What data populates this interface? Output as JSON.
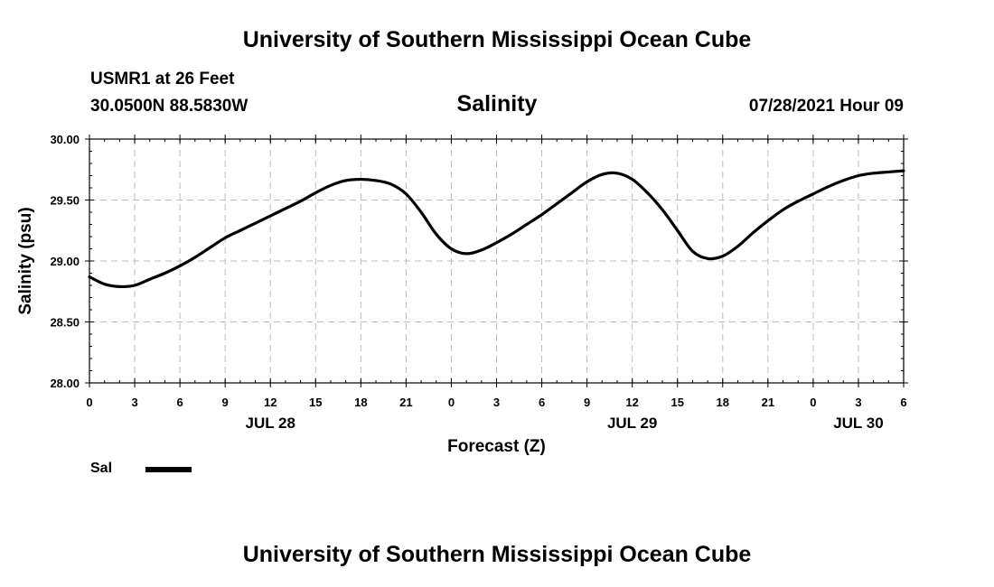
{
  "header": {
    "title": "University of Southern Mississippi Ocean Cube",
    "station": "USMR1 at 26 Feet",
    "coords": "30.0500N  88.5830W",
    "datetime": "07/28/2021 Hour 09"
  },
  "footer": {
    "title": "University of Southern Mississippi Ocean Cube"
  },
  "legend": {
    "label": "Sal",
    "color": "#000000"
  },
  "chart_data": {
    "type": "line",
    "title": "Salinity",
    "xlabel": "Forecast (Z)",
    "ylabel": "Salinity (psu)",
    "ylim": [
      28.0,
      30.0
    ],
    "xlim": [
      0,
      54
    ],
    "grid": true,
    "x_tick_labels": [
      "0",
      "3",
      "6",
      "9",
      "12",
      "15",
      "18",
      "21",
      "0",
      "3",
      "6",
      "9",
      "12",
      "15",
      "18",
      "21",
      "0",
      "3",
      "6"
    ],
    "y_tick_labels": [
      "28.00",
      "28.50",
      "29.00",
      "29.50",
      "30.00"
    ],
    "day_labels": [
      {
        "label": "JUL 28",
        "hour": 12
      },
      {
        "label": "JUL 29",
        "hour": 36
      },
      {
        "label": "JUL 30",
        "hour": 51
      }
    ],
    "series": [
      {
        "name": "Sal",
        "color": "#000000",
        "x": [
          0,
          1,
          2,
          3,
          4,
          5,
          6,
          7,
          8,
          9,
          10,
          11,
          12,
          13,
          14,
          15,
          16,
          17,
          18,
          19,
          20,
          21,
          22,
          23,
          24,
          25,
          26,
          27,
          28,
          29,
          30,
          31,
          32,
          33,
          34,
          35,
          36,
          37,
          38,
          39,
          40,
          41,
          42,
          43,
          44,
          45,
          46,
          47,
          48,
          49,
          50,
          51,
          52,
          53,
          54
        ],
        "y": [
          28.87,
          28.81,
          28.79,
          28.8,
          28.85,
          28.9,
          28.96,
          29.03,
          29.11,
          29.19,
          29.25,
          29.31,
          29.37,
          29.43,
          29.49,
          29.56,
          29.62,
          29.66,
          29.67,
          29.66,
          29.63,
          29.55,
          29.4,
          29.22,
          29.1,
          29.06,
          29.09,
          29.15,
          29.22,
          29.3,
          29.38,
          29.47,
          29.56,
          29.65,
          29.71,
          29.72,
          29.67,
          29.56,
          29.42,
          29.25,
          29.08,
          29.02,
          29.04,
          29.12,
          29.23,
          29.33,
          29.42,
          29.49,
          29.55,
          29.61,
          29.66,
          29.7,
          29.72,
          29.73,
          29.74
        ]
      }
    ]
  }
}
